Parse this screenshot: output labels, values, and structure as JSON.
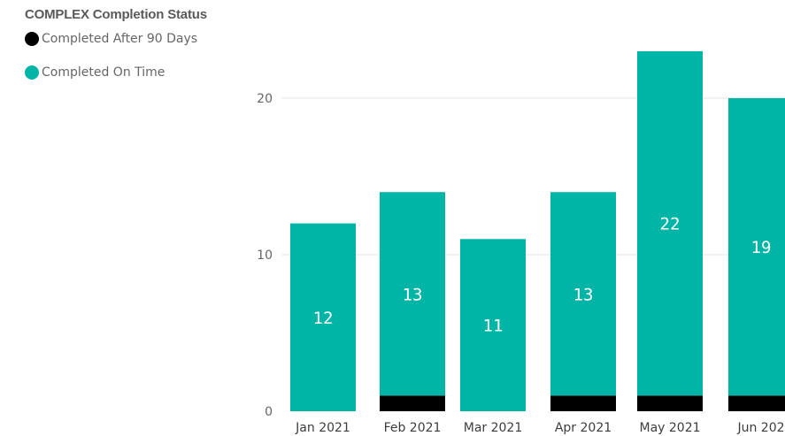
{
  "chart_data": {
    "type": "bar",
    "stacked": true,
    "legend_title": "COMPLEX Completion Status",
    "legend_position": "top-left",
    "categories": [
      "Jan 2021",
      "Feb 2021",
      "Mar 2021",
      "Apr 2021",
      "May 2021",
      "Jun 202"
    ],
    "series": [
      {
        "name": "Completed After 90 Days",
        "color": "#000000",
        "values": [
          0,
          1,
          0,
          1,
          1,
          1
        ]
      },
      {
        "name": "Completed On Time",
        "color": "#00b5a5",
        "values": [
          12,
          13,
          11,
          13,
          22,
          19
        ]
      }
    ],
    "data_labels": [
      "12",
      "13",
      "11",
      "13",
      "22",
      "19"
    ],
    "yticks": [
      "0",
      "10",
      "20"
    ],
    "ylim": [
      0,
      24
    ],
    "grid": true
  }
}
